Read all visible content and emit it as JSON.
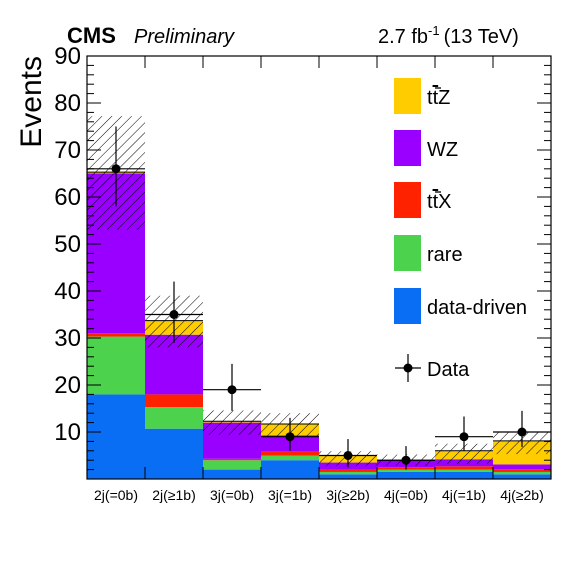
{
  "header": {
    "experiment": "CMS",
    "status": "Preliminary",
    "lumi_value": "2.7 fb",
    "lumi_exp": "-1",
    "energy": "(13 TeV)"
  },
  "chart_data": {
    "type": "bar",
    "stacked": true,
    "ylabel": "Events",
    "xlabel": "",
    "ylim": [
      0,
      90
    ],
    "yticks": [
      10,
      20,
      30,
      40,
      50,
      60,
      70,
      80,
      90
    ],
    "grid": false,
    "legend_position": "right",
    "categories": [
      "2j(=0b)",
      "2j(≥1b)",
      "3j(=0b)",
      "3j(=1b)",
      "3j(≥2b)",
      "4j(=0b)",
      "4j(=1b)",
      "4j(≥2b)"
    ],
    "series": [
      {
        "name": "data-driven",
        "color": "#0a6ef5",
        "values": [
          18,
          10.7,
          2,
          4,
          1,
          1.5,
          1.5,
          1
        ]
      },
      {
        "name": "rare",
        "color": "#4dd24d",
        "values": [
          12.3,
          4.6,
          2,
          1,
          0.5,
          0.5,
          0.5,
          0.5
        ]
      },
      {
        "name": "t̄tX",
        "label_parts": [
          "t",
          "t",
          "X"
        ],
        "color": "#ff2200",
        "values": [
          0.7,
          2.7,
          0.3,
          0.8,
          0.5,
          0.5,
          0.7,
          0.6
        ]
      },
      {
        "name": "WZ",
        "color": "#9900ff",
        "values": [
          34,
          12.7,
          7.7,
          3.5,
          1.5,
          1.5,
          1.5,
          1
        ]
      },
      {
        "name": "t̄tZ",
        "label_parts": [
          "t",
          "t",
          "Z"
        ],
        "color": "#ffcc00",
        "values": [
          0.3,
          3,
          0.3,
          2.4,
          1.5,
          0,
          1.8,
          5
        ]
      }
    ],
    "uncertainty_hatch": {
      "up": [
        77.2,
        39,
        14.6,
        14,
        5.9,
        5.2,
        7.5,
        10
      ],
      "down": [
        53,
        28,
        9.4,
        9,
        2.7,
        2.8,
        3.2,
        5.3
      ]
    },
    "data": {
      "name": "Data",
      "values": [
        66,
        35,
        19,
        9,
        5,
        4,
        9,
        10
      ],
      "err_up": [
        9,
        7,
        5.5,
        4,
        3.5,
        3,
        4.3,
        4.5
      ],
      "err_down": [
        8,
        6,
        4.5,
        3,
        2.5,
        2,
        3,
        3.2
      ]
    }
  }
}
